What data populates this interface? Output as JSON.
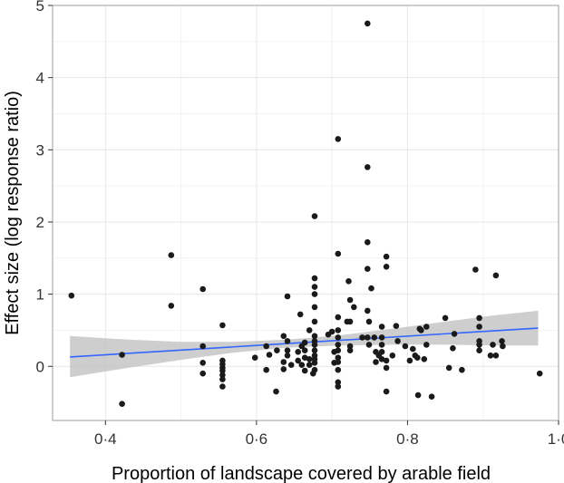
{
  "chart_data": {
    "type": "scatter",
    "title": "",
    "xlabel": "Proportion of landscape covered by arable field",
    "ylabel": "Effect size (log response ratio)",
    "xlim": [
      0.33,
      1.0
    ],
    "ylim": [
      -0.75,
      5.0
    ],
    "xticks": [
      0.4,
      0.6,
      0.8,
      1.0
    ],
    "xtick_labels": [
      "0·4",
      "0·6",
      "0·8",
      "1·0"
    ],
    "yticks": [
      0,
      1,
      2,
      3,
      4,
      5
    ],
    "ytick_labels": [
      "0",
      "1",
      "2",
      "3",
      "4",
      "5"
    ],
    "grid": true,
    "legend": "none",
    "colors": {
      "points": "#1a1a1a",
      "trend_line": "#3366ff",
      "confidence_band": "#bdbdbd",
      "grid_major": "#e6e6e6",
      "grid_minor": "#f2f2f2",
      "frame": "#9e9e9e"
    },
    "points": [
      [
        0.355,
        0.98
      ],
      [
        0.422,
        0.16
      ],
      [
        0.422,
        -0.52
      ],
      [
        0.487,
        1.54
      ],
      [
        0.487,
        0.84
      ],
      [
        0.529,
        1.07
      ],
      [
        0.529,
        0.28
      ],
      [
        0.529,
        0.05
      ],
      [
        0.529,
        -0.1
      ],
      [
        0.555,
        0.57
      ],
      [
        0.555,
        0.08
      ],
      [
        0.555,
        0.03
      ],
      [
        0.555,
        -0.02
      ],
      [
        0.555,
        -0.06
      ],
      [
        0.555,
        -0.12
      ],
      [
        0.555,
        -0.18
      ],
      [
        0.555,
        -0.28
      ],
      [
        0.598,
        0.12
      ],
      [
        0.613,
        -0.05
      ],
      [
        0.613,
        0.28
      ],
      [
        0.617,
        0.16
      ],
      [
        0.626,
        -0.35
      ],
      [
        0.627,
        0.22
      ],
      [
        0.636,
        0.42
      ],
      [
        0.636,
        0.06
      ],
      [
        0.636,
        -0.04
      ],
      [
        0.641,
        0.97
      ],
      [
        0.641,
        0.35
      ],
      [
        0.641,
        0.22
      ],
      [
        0.641,
        0.15
      ],
      [
        0.646,
        0.02
      ],
      [
        0.655,
        0.2
      ],
      [
        0.655,
        0.08
      ],
      [
        0.658,
        0.72
      ],
      [
        0.66,
        0.02
      ],
      [
        0.66,
        0.28
      ],
      [
        0.664,
        0.33
      ],
      [
        0.664,
        0.22
      ],
      [
        0.664,
        0.12
      ],
      [
        0.664,
        -0.06
      ],
      [
        0.67,
        0.5
      ],
      [
        0.67,
        0.1
      ],
      [
        0.67,
        0.02
      ],
      [
        0.675,
        -0.1
      ],
      [
        0.677,
        2.08
      ],
      [
        0.677,
        1.22
      ],
      [
        0.677,
        1.1
      ],
      [
        0.677,
        1.0
      ],
      [
        0.677,
        0.82
      ],
      [
        0.677,
        0.62
      ],
      [
        0.677,
        0.42
      ],
      [
        0.677,
        0.35
      ],
      [
        0.677,
        0.3
      ],
      [
        0.677,
        0.22
      ],
      [
        0.677,
        0.15
      ],
      [
        0.677,
        0.1
      ],
      [
        0.677,
        0.05
      ],
      [
        0.677,
        -0.05
      ],
      [
        0.695,
        0.44
      ],
      [
        0.7,
        0.48
      ],
      [
        0.703,
        0.2
      ],
      [
        0.703,
        0.05
      ],
      [
        0.708,
        3.15
      ],
      [
        0.708,
        1.56
      ],
      [
        0.708,
        0.68
      ],
      [
        0.708,
        0.5
      ],
      [
        0.708,
        0.4
      ],
      [
        0.708,
        0.3
      ],
      [
        0.708,
        0.22
      ],
      [
        0.708,
        0.12
      ],
      [
        0.708,
        0.06
      ],
      [
        0.708,
        -0.05
      ],
      [
        0.708,
        -0.22
      ],
      [
        0.708,
        -0.28
      ],
      [
        0.72,
        0.62
      ],
      [
        0.722,
        1.18
      ],
      [
        0.724,
        0.92
      ],
      [
        0.724,
        0.28
      ],
      [
        0.724,
        0.22
      ],
      [
        0.724,
        0.62
      ],
      [
        0.729,
        0.82
      ],
      [
        0.74,
        0.4
      ],
      [
        0.747,
        4.75
      ],
      [
        0.747,
        2.76
      ],
      [
        0.747,
        1.72
      ],
      [
        0.747,
        1.35
      ],
      [
        0.747,
        0.77
      ],
      [
        0.747,
        0.4
      ],
      [
        0.749,
        0.3
      ],
      [
        0.749,
        0.62
      ],
      [
        0.752,
        1.08
      ],
      [
        0.756,
        0.4
      ],
      [
        0.758,
        0.2
      ],
      [
        0.758,
        0.06
      ],
      [
        0.762,
        0.15
      ],
      [
        0.766,
        0.1
      ],
      [
        0.766,
        0.2
      ],
      [
        0.766,
        0.3
      ],
      [
        0.766,
        0.4
      ],
      [
        0.766,
        0.55
      ],
      [
        0.772,
        1.52
      ],
      [
        0.772,
        1.38
      ],
      [
        0.772,
        0.08
      ],
      [
        0.772,
        -0.02
      ],
      [
        0.772,
        -0.35
      ],
      [
        0.78,
        0.15
      ],
      [
        0.785,
        0.56
      ],
      [
        0.787,
        0.35
      ],
      [
        0.797,
        0.28
      ],
      [
        0.803,
        0.08
      ],
      [
        0.807,
        0.24
      ],
      [
        0.81,
        0.15
      ],
      [
        0.813,
        0.12
      ],
      [
        0.816,
        0.52
      ],
      [
        0.818,
        0.5
      ],
      [
        0.822,
        0.1
      ],
      [
        0.825,
        0.3
      ],
      [
        0.814,
        -0.4
      ],
      [
        0.825,
        0.55
      ],
      [
        0.832,
        -0.42
      ],
      [
        0.85,
        0.67
      ],
      [
        0.855,
        -0.02
      ],
      [
        0.86,
        0.25
      ],
      [
        0.862,
        0.45
      ],
      [
        0.872,
        -0.05
      ],
      [
        0.89,
        1.34
      ],
      [
        0.895,
        0.67
      ],
      [
        0.895,
        0.55
      ],
      [
        0.895,
        0.35
      ],
      [
        0.895,
        0.3
      ],
      [
        0.895,
        0.22
      ],
      [
        0.91,
        0.15
      ],
      [
        0.913,
        0.3
      ],
      [
        0.917,
        1.26
      ],
      [
        0.917,
        0.15
      ],
      [
        0.925,
        0.35
      ],
      [
        0.926,
        0.28
      ],
      [
        0.975,
        -0.1
      ]
    ],
    "trend": {
      "x": [
        0.353,
        0.973
      ],
      "y": [
        0.13,
        0.53
      ]
    },
    "band": {
      "x": [
        0.353,
        0.43,
        0.5,
        0.57,
        0.64,
        0.71,
        0.78,
        0.85,
        0.91,
        0.973
      ],
      "lower": [
        -0.15,
        -0.02,
        0.09,
        0.19,
        0.26,
        0.29,
        0.3,
        0.3,
        0.29,
        0.29
      ],
      "upper": [
        0.42,
        0.37,
        0.34,
        0.34,
        0.37,
        0.43,
        0.52,
        0.62,
        0.7,
        0.77
      ]
    }
  }
}
